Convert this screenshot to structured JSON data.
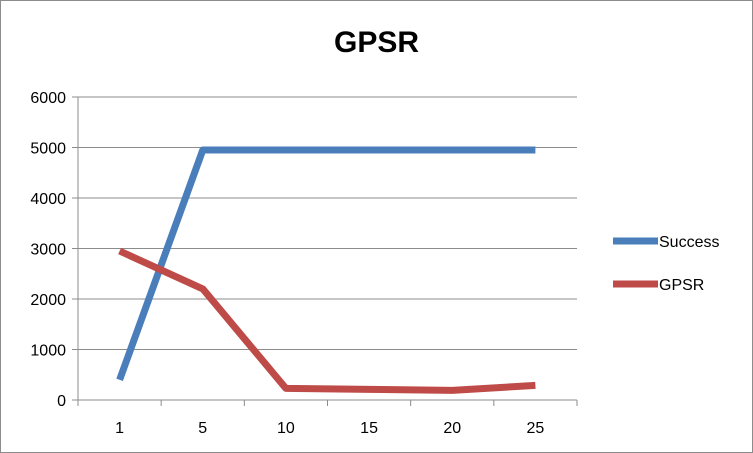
{
  "chart_data": {
    "type": "line",
    "title": "GPSR",
    "xlabel": "",
    "ylabel": "",
    "categories": [
      "1",
      "5",
      "10",
      "15",
      "20",
      "25"
    ],
    "y_ticks": [
      "0",
      "1000",
      "2000",
      "3000",
      "4000",
      "5000",
      "6000"
    ],
    "ylim": [
      0,
      6000
    ],
    "grid": true,
    "legend_position": "right",
    "series": [
      {
        "name": "Success",
        "color": "#4a7ebb",
        "values": [
          400,
          4950,
          4950,
          4950,
          4950,
          4950
        ]
      },
      {
        "name": "GPSR",
        "color": "#be4b48",
        "values": [
          2950,
          2200,
          230,
          210,
          190,
          290
        ]
      }
    ]
  }
}
